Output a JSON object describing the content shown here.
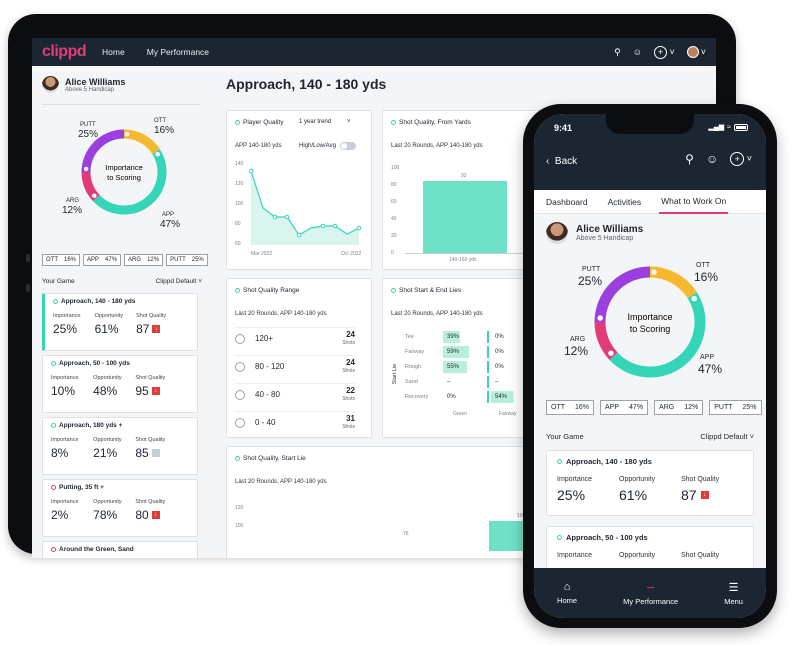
{
  "tablet": {
    "nav": {
      "logo": "clippd",
      "links": [
        "Home",
        "My Performance"
      ]
    },
    "profile": {
      "name": "Alice Williams",
      "subtitle": "Above 5 Handicap"
    },
    "donut": {
      "center": [
        "Importance",
        "to Scoring"
      ],
      "segments": [
        {
          "label": "OTT",
          "value": "16%",
          "color": "#f5b82e"
        },
        {
          "label": "APP",
          "value": "47%",
          "color": "#35d6b8"
        },
        {
          "label": "ARG",
          "value": "12%",
          "color": "#e23b7a"
        },
        {
          "label": "PUTT",
          "value": "25%",
          "color": "#9b3fe0"
        }
      ]
    },
    "stats": [
      {
        "label": "OTT",
        "value": "16%"
      },
      {
        "label": "APP",
        "value": "47%"
      },
      {
        "label": "ARG",
        "value": "12%"
      },
      {
        "label": "PUTT",
        "value": "25%"
      }
    ],
    "your_game": "Your Game",
    "filter": "Clippd Default",
    "col_headers": [
      "Importance",
      "Opportunity",
      "Shot Quality"
    ],
    "cards": [
      {
        "title": "Approach, 140 - 180 yds",
        "importance": "25%",
        "opportunity": "61%",
        "quality": "87",
        "flag": "red"
      },
      {
        "title": "Approach, 50 - 100 yds",
        "importance": "10%",
        "opportunity": "48%",
        "quality": "95",
        "flag": "red"
      },
      {
        "title": "Approach, 180 yds +",
        "importance": "8%",
        "opportunity": "21%",
        "quality": "85",
        "flag": "grey"
      },
      {
        "title": "Putting, 35 ft +",
        "importance": "2%",
        "opportunity": "78%",
        "quality": "80",
        "flag": "red"
      },
      {
        "title": "Around the Green, Sand",
        "importance": "",
        "opportunity": "",
        "quality": "",
        "flag": "none"
      }
    ],
    "main": {
      "title": "Approach, 140 - 180 yds",
      "player_quality": {
        "title": "Player Quality",
        "range": "1 year trend",
        "subtitle": "APP 140-180 yds",
        "toggle_label": "High/Low/Avg",
        "y_ticks": [
          "140",
          "120",
          "100",
          "80",
          "60"
        ],
        "x_ticks": [
          "Mar 2022",
          "Oct 2022"
        ]
      },
      "shot_quality_yards": {
        "title": "Shot Quality, From Yards",
        "subtitle": "Last 20 Rounds, APP 140-180 yds",
        "y_ticks": [
          "100",
          "80",
          "60",
          "40",
          "20",
          "0"
        ],
        "bar_label": "92",
        "x_label": "140-160 yds"
      },
      "shot_quality_range": {
        "title": "Shot Quality Range",
        "subtitle": "Last 20 Rounds, APP 140-180 yds",
        "unit": "Shots",
        "rows": [
          {
            "label": "120+",
            "value": "24"
          },
          {
            "label": "80 - 120",
            "value": "24"
          },
          {
            "label": "40 - 80",
            "value": "22"
          },
          {
            "label": "0 - 40",
            "value": "31"
          }
        ]
      },
      "start_end_lies": {
        "title": "Shot Start & End Lies",
        "subtitle": "Last 20 Rounds, APP 140-180 yds",
        "axis_label": "Start Lie",
        "rows": [
          "Tee",
          "Fairway",
          "Rough",
          "Sand",
          "Recovery"
        ],
        "col1": [
          "39%",
          "59%",
          "55%",
          "–",
          "0%"
        ],
        "col2": [
          "0%",
          "0%",
          "0%",
          "–",
          "54%"
        ],
        "x_labels": [
          "Green",
          "Fairway"
        ]
      },
      "start_lie": {
        "title": "Shot Quality, Start Lie",
        "subtitle": "Last 20 Rounds, APP 140-180 yds",
        "y_ticks": [
          "120",
          "100"
        ],
        "bar_labels": [
          "76",
          "100"
        ]
      }
    }
  },
  "phone": {
    "time": "9:41",
    "back": "Back",
    "tabs": [
      "Dashboard",
      "Activities",
      "What to Work On"
    ],
    "profile": {
      "name": "Alice Williams",
      "subtitle": "Above 5 Handicap"
    },
    "donut_center": [
      "Importance",
      "to Scoring"
    ],
    "stats": [
      {
        "label": "OTT",
        "value": "16%"
      },
      {
        "label": "APP",
        "value": "47%"
      },
      {
        "label": "ARG",
        "value": "12%"
      },
      {
        "label": "PUTT",
        "value": "25%"
      }
    ],
    "your_game": "Your Game",
    "filter": "Clippd Default",
    "col_headers": [
      "Importance",
      "Opportunity",
      "Shot Quality"
    ],
    "cards": [
      {
        "title": "Approach, 140 - 180 yds",
        "importance": "25%",
        "opportunity": "61%",
        "quality": "87"
      },
      {
        "title": "Approach, 50 - 100 yds",
        "importance": "",
        "opportunity": "",
        "quality": ""
      }
    ],
    "bottom_nav": [
      "Home",
      "My Performance",
      "Menu"
    ]
  }
}
